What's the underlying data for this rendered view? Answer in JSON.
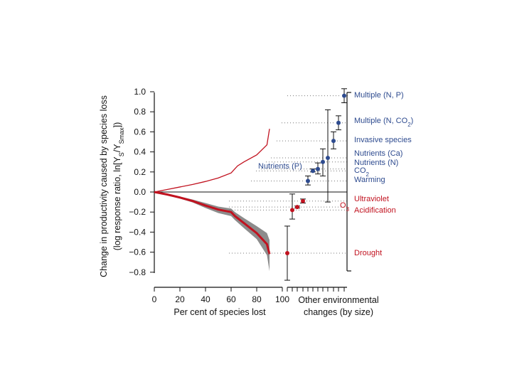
{
  "chart_data": {
    "type": "line",
    "ylabel_line1": "Change in productivity caused by species loss",
    "ylabel_line2_prefix": "(log response ratio, ln[Y",
    "ylabel_sub1": "S",
    "ylabel_mid": "/Y",
    "ylabel_sub2": "Smax",
    "ylabel_suffix": "])",
    "xlabel": "Per cent of species lost",
    "xlabel_right_line1": "Other environmental",
    "xlabel_right_line2": "changes (by size)",
    "ylim": [
      -0.8,
      1.0
    ],
    "xlim": [
      0,
      100
    ],
    "y_ticks": [
      "1.0",
      "0.8",
      "0.6",
      "0.4",
      "0.2",
      "0.0",
      "−0.2",
      "−0.4",
      "−0.6",
      "−0.8"
    ],
    "y_tick_values": [
      1.0,
      0.8,
      0.6,
      0.4,
      0.2,
      0.0,
      -0.2,
      -0.4,
      -0.6,
      -0.8
    ],
    "x_ticks": [
      "0",
      "20",
      "40",
      "60",
      "80",
      "100"
    ],
    "x_tick_values": [
      0,
      20,
      40,
      60,
      80,
      100
    ],
    "colors": {
      "positive": "#2e4b8f",
      "negative": "#c1121f",
      "band": "#8c8c8c",
      "axis": "#111111"
    },
    "upper_line": {
      "x": [
        0,
        10,
        20,
        30,
        40,
        50,
        60,
        65,
        70,
        80,
        88,
        90
      ],
      "y": [
        0,
        0.025,
        0.05,
        0.075,
        0.105,
        0.14,
        0.19,
        0.26,
        0.3,
        0.37,
        0.47,
        0.63
      ]
    },
    "lower_line": {
      "x": [
        0,
        10,
        20,
        30,
        40,
        50,
        60,
        63,
        70,
        80,
        88,
        90
      ],
      "y": [
        0,
        -0.025,
        -0.055,
        -0.09,
        -0.135,
        -0.175,
        -0.2,
        -0.24,
        -0.31,
        -0.41,
        -0.52,
        -0.62
      ]
    },
    "band": {
      "x": [
        0,
        10,
        20,
        30,
        40,
        50,
        60,
        63,
        70,
        80,
        88,
        90
      ],
      "upper": [
        0,
        -0.02,
        -0.045,
        -0.075,
        -0.11,
        -0.145,
        -0.165,
        -0.2,
        -0.26,
        -0.34,
        -0.41,
        -0.48
      ],
      "lower": [
        0,
        -0.03,
        -0.065,
        -0.105,
        -0.16,
        -0.21,
        -0.24,
        -0.28,
        -0.36,
        -0.47,
        -0.63,
        -0.79
      ]
    },
    "effects": [
      {
        "label": "Multiple (N, P)",
        "value": 0.96,
        "ci": [
          0.89,
          1.03
        ],
        "group": "positive"
      },
      {
        "label": "Multiple (N, CO",
        "label_sub": "2",
        "label_end": ")",
        "value": 0.69,
        "ci": [
          0.62,
          0.76
        ],
        "group": "positive"
      },
      {
        "label": "Invasive species",
        "value": 0.51,
        "ci": [
          0.43,
          0.6
        ],
        "group": "positive"
      },
      {
        "label": "Nutrients (Ca)",
        "value": 0.34,
        "ci": [
          -0.1,
          0.82
        ],
        "group": "positive"
      },
      {
        "label": "Nutrients (N)",
        "value": 0.3,
        "ci": [
          0.16,
          0.43
        ],
        "group": "positive"
      },
      {
        "label": "CO",
        "label_sub": "2",
        "value": 0.23,
        "ci": [
          0.18,
          0.29
        ],
        "group": "positive"
      },
      {
        "label": "Nutrients (P)",
        "value": 0.21,
        "ci": [
          0.2,
          0.23
        ],
        "group": "positive"
      },
      {
        "label": "Warming",
        "value": 0.11,
        "ci": [
          0.07,
          0.16
        ],
        "group": "positive"
      },
      {
        "label": "Ultraviolet",
        "value": -0.09,
        "ci": [
          -0.11,
          -0.07
        ],
        "group": "negative"
      },
      {
        "label": "O",
        "label_sub": "3",
        "value": -0.15,
        "ci": [
          -0.16,
          -0.14
        ],
        "group": "negative"
      },
      {
        "label": "Acidification",
        "value": -0.18,
        "ci": [
          -0.27,
          -0.02
        ],
        "group": "negative"
      },
      {
        "label": "Drought",
        "value": -0.61,
        "ci": [
          -0.88,
          -0.34
        ],
        "group": "negative"
      }
    ]
  }
}
